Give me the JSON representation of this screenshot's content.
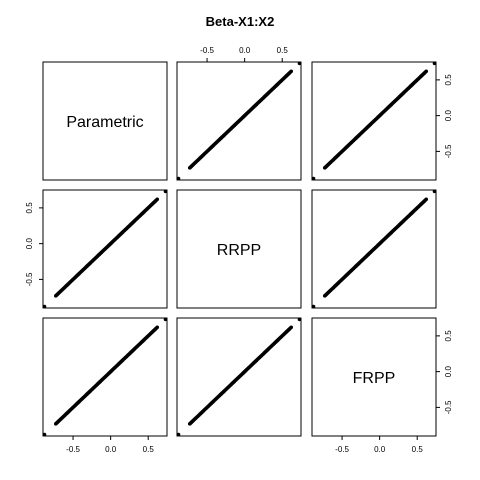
{
  "chart_data": {
    "type": "scatter",
    "title": "Beta-X1:X2",
    "variables": [
      "Parametric",
      "RRPP",
      "FRPP"
    ],
    "xlim": [
      -0.9,
      0.75
    ],
    "ylim": [
      -0.9,
      0.75
    ],
    "ticks": [
      -0.5,
      0.0,
      0.5
    ],
    "tick_labels": [
      "-0.5",
      "0.0",
      "0.5"
    ],
    "grid": false,
    "layout": "3x3 pairs matrix",
    "points": {
      "min": -0.88,
      "max": 0.73,
      "main_start": -0.73,
      "main_end": 0.62,
      "relation": "y = x"
    }
  }
}
